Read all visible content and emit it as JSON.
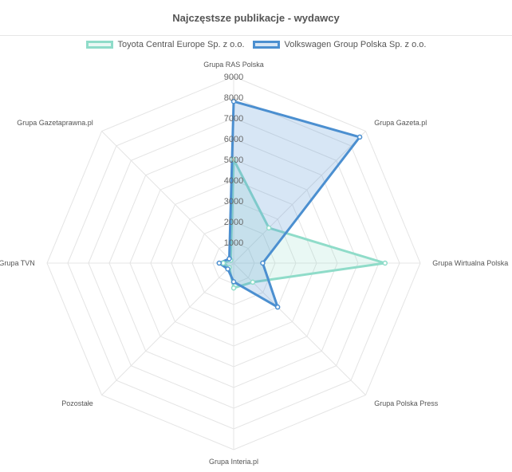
{
  "chart_data": {
    "type": "radar",
    "title": "Najczęstsze publikacje - wydawcy",
    "categories": [
      "Grupa RAS Polska",
      "Grupa Gazeta.pl",
      "Grupa Wirtualna Polska",
      "Grupa Polska Press",
      "Grupa Interia.pl",
      "Pozostałe",
      "Grupa TVN",
      "Grupa Gazetaprawna.pl"
    ],
    "series": [
      {
        "name": "Toyota Central Europe Sp. z o.o.",
        "values": [
          5000,
          2400,
          7300,
          1300,
          1200,
          300,
          500,
          200
        ],
        "color": "#8fdcc9",
        "fill": "rgba(143,220,201,0.2)"
      },
      {
        "name": "Volkswagen Group Polska Sp. z o.o.",
        "values": [
          7800,
          8600,
          1400,
          3000,
          900,
          400,
          700,
          300
        ],
        "color": "#4b8fd0",
        "fill": "rgba(75,143,208,0.22)"
      }
    ],
    "rlim": [
      0,
      9000
    ],
    "ticks": [
      "1000",
      "2000",
      "3000",
      "4000",
      "5000",
      "6000",
      "7000",
      "8000",
      "9000"
    ],
    "tick_step": 1000,
    "grid": true,
    "legend_position": "top"
  }
}
